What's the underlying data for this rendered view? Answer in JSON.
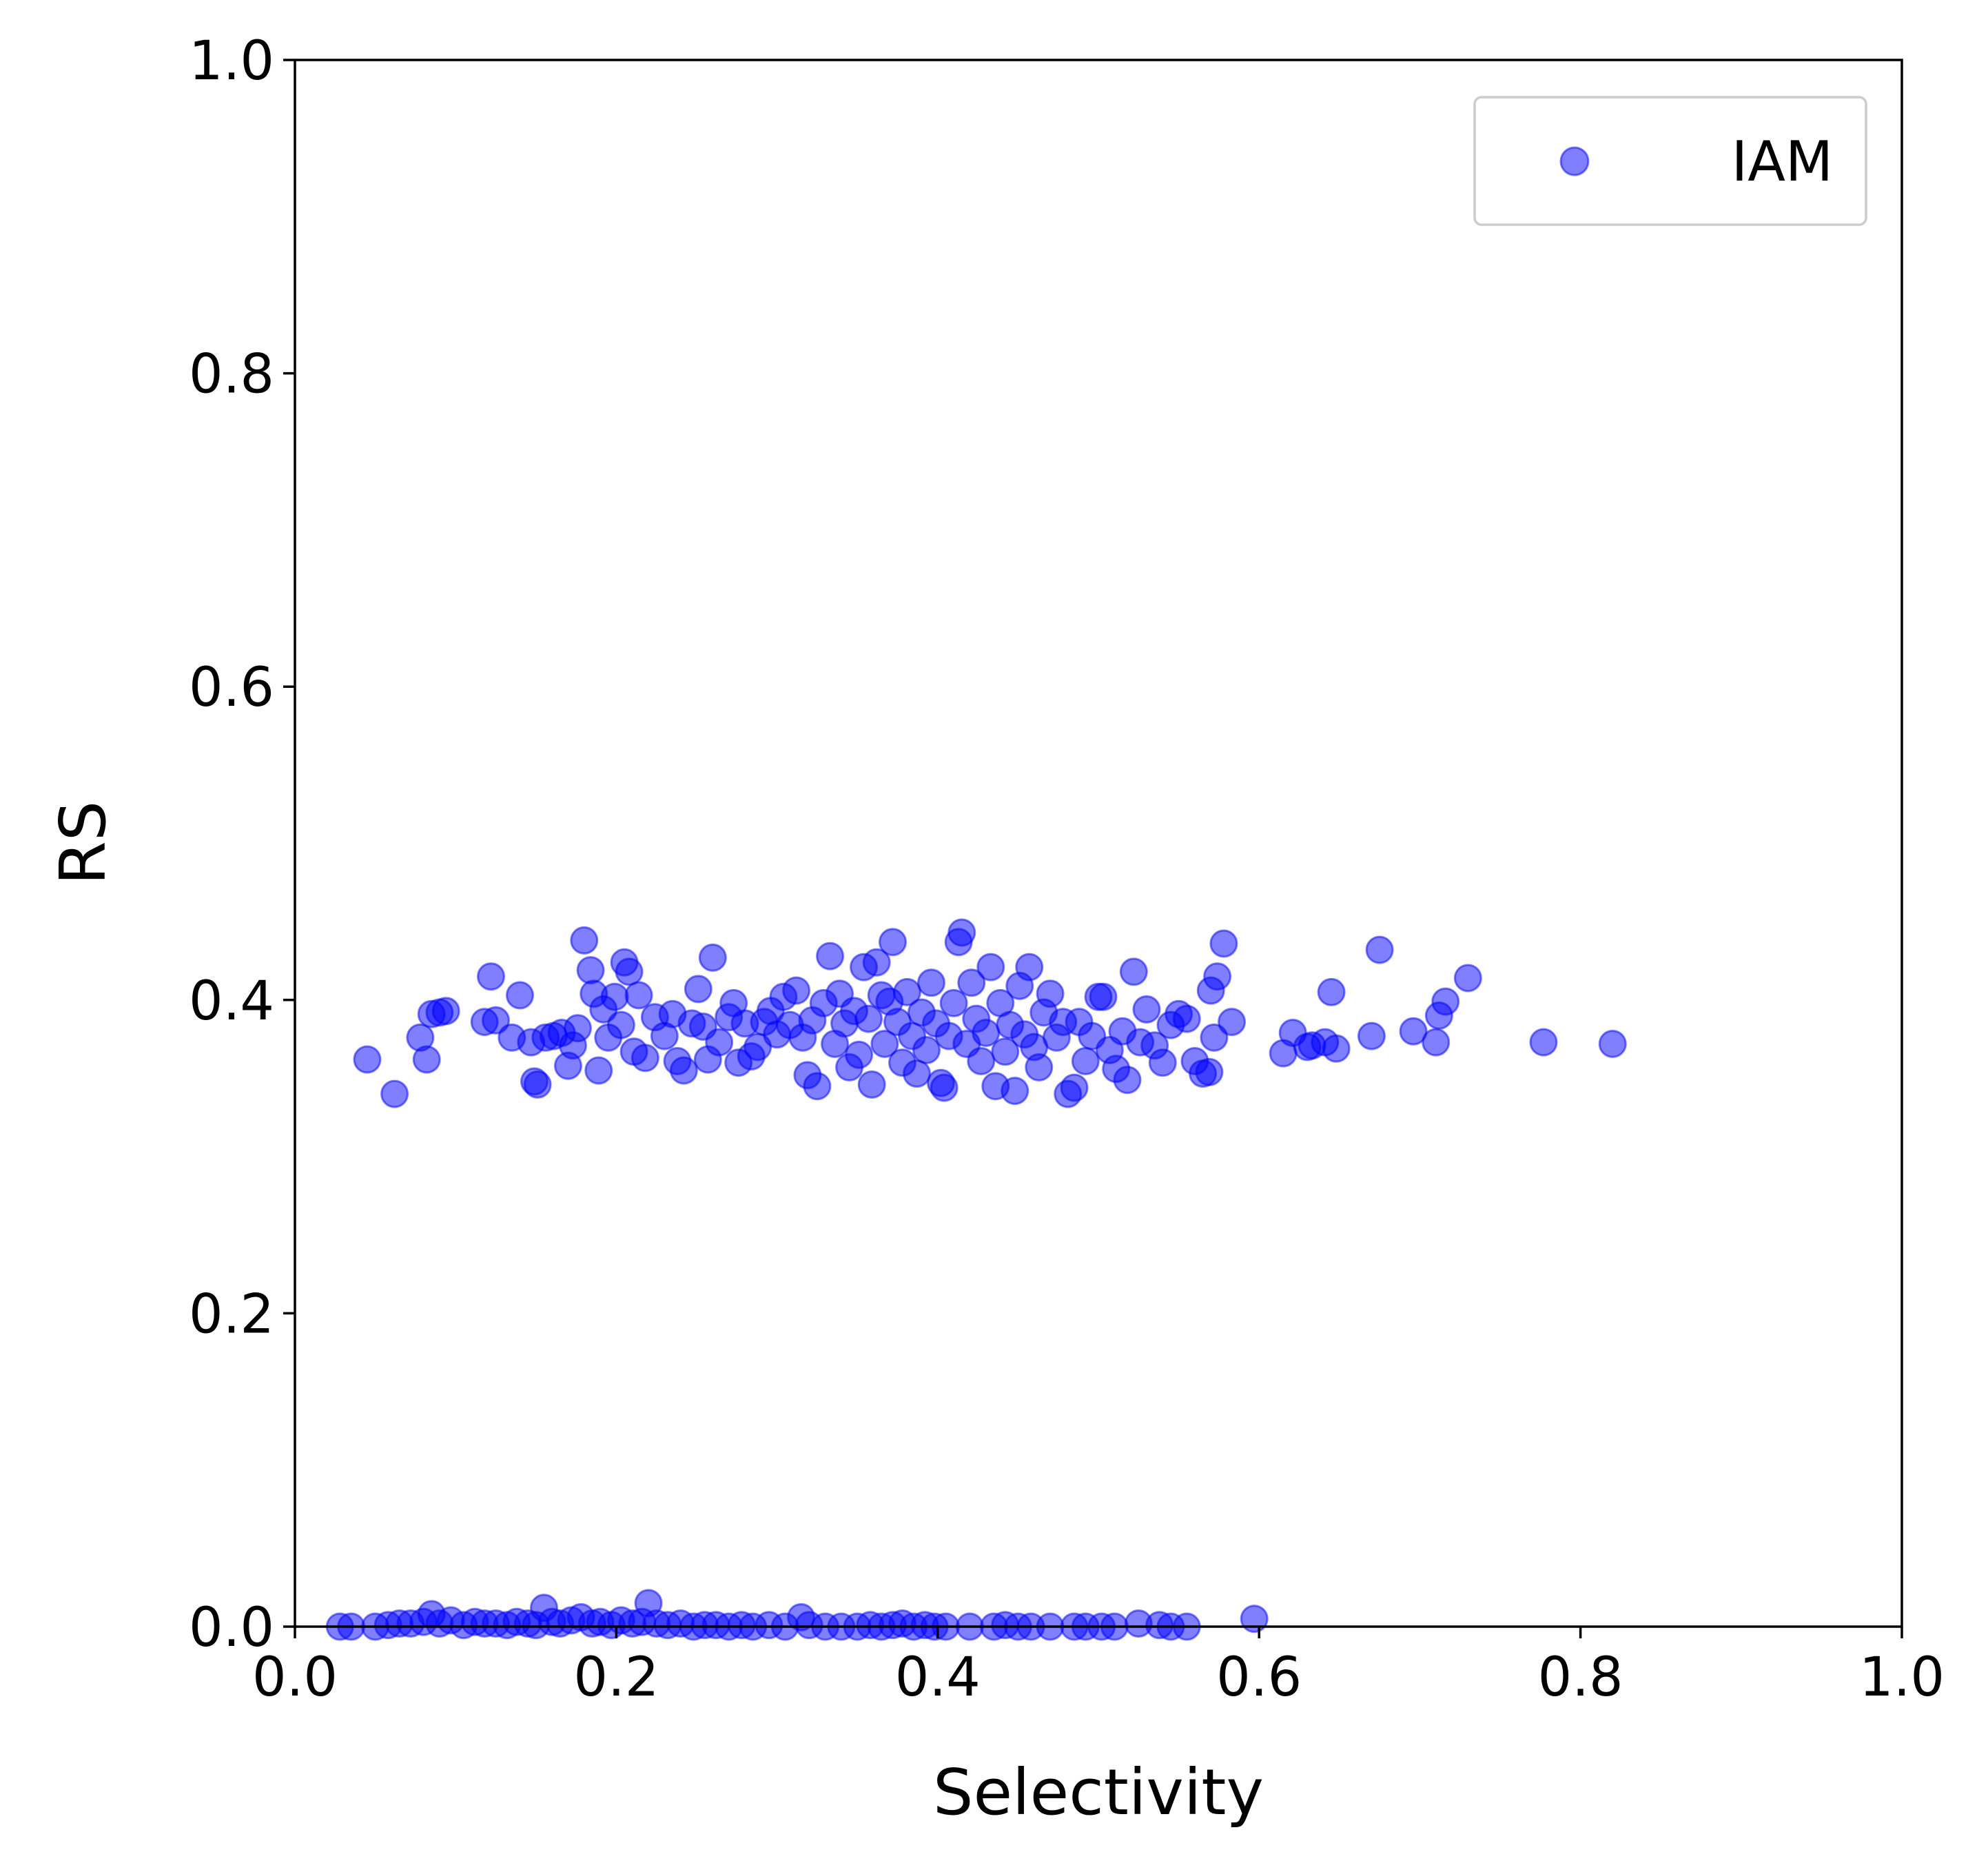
{
  "chart_data": {
    "type": "scatter",
    "title": "",
    "xlabel": "Selectivity",
    "ylabel": "RS",
    "xlim": [
      0.0,
      1.0
    ],
    "ylim": [
      0.0,
      1.0
    ],
    "xticks": [
      "0.0",
      "0.2",
      "0.4",
      "0.6",
      "0.8",
      "1.0"
    ],
    "yticks": [
      "0.0",
      "0.2",
      "0.4",
      "0.6",
      "0.8",
      "1.0"
    ],
    "grid": false,
    "legend_position": "top-right",
    "series": [
      {
        "name": "IAM",
        "color": "#0000ff",
        "alpha": 0.5,
        "points": [
          [
            0.045,
            0.362
          ],
          [
            0.062,
            0.34
          ],
          [
            0.078,
            0.376
          ],
          [
            0.082,
            0.362
          ],
          [
            0.085,
            0.391
          ],
          [
            0.09,
            0.392
          ],
          [
            0.094,
            0.393
          ],
          [
            0.118,
            0.386
          ],
          [
            0.122,
            0.415
          ],
          [
            0.125,
            0.387
          ],
          [
            0.135,
            0.376
          ],
          [
            0.14,
            0.403
          ],
          [
            0.147,
            0.373
          ],
          [
            0.149,
            0.348
          ],
          [
            0.151,
            0.346
          ],
          [
            0.156,
            0.376
          ],
          [
            0.161,
            0.377
          ],
          [
            0.166,
            0.379
          ],
          [
            0.17,
            0.358
          ],
          [
            0.173,
            0.371
          ],
          [
            0.176,
            0.382
          ],
          [
            0.18,
            0.438
          ],
          [
            0.184,
            0.419
          ],
          [
            0.186,
            0.404
          ],
          [
            0.189,
            0.355
          ],
          [
            0.192,
            0.394
          ],
          [
            0.195,
            0.376
          ],
          [
            0.199,
            0.402
          ],
          [
            0.203,
            0.384
          ],
          [
            0.205,
            0.424
          ],
          [
            0.208,
            0.418
          ],
          [
            0.211,
            0.367
          ],
          [
            0.214,
            0.403
          ],
          [
            0.218,
            0.363
          ],
          [
            0.224,
            0.389
          ],
          [
            0.23,
            0.377
          ],
          [
            0.235,
            0.391
          ],
          [
            0.238,
            0.361
          ],
          [
            0.242,
            0.355
          ],
          [
            0.247,
            0.385
          ],
          [
            0.251,
            0.407
          ],
          [
            0.254,
            0.383
          ],
          [
            0.257,
            0.362
          ],
          [
            0.26,
            0.427
          ],
          [
            0.264,
            0.373
          ],
          [
            0.27,
            0.389
          ],
          [
            0.273,
            0.398
          ],
          [
            0.276,
            0.36
          ],
          [
            0.28,
            0.385
          ],
          [
            0.284,
            0.364
          ],
          [
            0.288,
            0.37
          ],
          [
            0.292,
            0.386
          ],
          [
            0.296,
            0.393
          ],
          [
            0.3,
            0.378
          ],
          [
            0.304,
            0.402
          ],
          [
            0.308,
            0.384
          ],
          [
            0.312,
            0.406
          ],
          [
            0.316,
            0.376
          ],
          [
            0.319,
            0.352
          ],
          [
            0.322,
            0.387
          ],
          [
            0.325,
            0.345
          ],
          [
            0.329,
            0.398
          ],
          [
            0.333,
            0.428
          ],
          [
            0.336,
            0.372
          ],
          [
            0.339,
            0.404
          ],
          [
            0.342,
            0.385
          ],
          [
            0.345,
            0.357
          ],
          [
            0.348,
            0.393
          ],
          [
            0.351,
            0.365
          ],
          [
            0.354,
            0.421
          ],
          [
            0.357,
            0.388
          ],
          [
            0.359,
            0.346
          ],
          [
            0.362,
            0.424
          ],
          [
            0.365,
            0.403
          ],
          [
            0.367,
            0.372
          ],
          [
            0.37,
            0.399
          ],
          [
            0.372,
            0.437
          ],
          [
            0.375,
            0.386
          ],
          [
            0.378,
            0.36
          ],
          [
            0.381,
            0.405
          ],
          [
            0.384,
            0.377
          ],
          [
            0.387,
            0.353
          ],
          [
            0.39,
            0.392
          ],
          [
            0.393,
            0.368
          ],
          [
            0.396,
            0.411
          ],
          [
            0.399,
            0.385
          ],
          [
            0.402,
            0.347
          ],
          [
            0.404,
            0.344
          ],
          [
            0.407,
            0.377
          ],
          [
            0.41,
            0.398
          ],
          [
            0.413,
            0.437
          ],
          [
            0.415,
            0.443
          ],
          [
            0.418,
            0.372
          ],
          [
            0.421,
            0.411
          ],
          [
            0.424,
            0.388
          ],
          [
            0.427,
            0.361
          ],
          [
            0.43,
            0.379
          ],
          [
            0.433,
            0.421
          ],
          [
            0.436,
            0.345
          ],
          [
            0.439,
            0.398
          ],
          [
            0.442,
            0.367
          ],
          [
            0.445,
            0.384
          ],
          [
            0.448,
            0.342
          ],
          [
            0.451,
            0.409
          ],
          [
            0.454,
            0.378
          ],
          [
            0.457,
            0.421
          ],
          [
            0.46,
            0.37
          ],
          [
            0.463,
            0.357
          ],
          [
            0.466,
            0.392
          ],
          [
            0.47,
            0.404
          ],
          [
            0.474,
            0.376
          ],
          [
            0.478,
            0.386
          ],
          [
            0.481,
            0.34
          ],
          [
            0.485,
            0.344
          ],
          [
            0.488,
            0.386
          ],
          [
            0.492,
            0.361
          ],
          [
            0.496,
            0.377
          ],
          [
            0.5,
            0.402
          ],
          [
            0.503,
            0.402
          ],
          [
            0.507,
            0.368
          ],
          [
            0.511,
            0.356
          ],
          [
            0.515,
            0.38
          ],
          [
            0.518,
            0.349
          ],
          [
            0.522,
            0.418
          ],
          [
            0.526,
            0.373
          ],
          [
            0.53,
            0.394
          ],
          [
            0.535,
            0.371
          ],
          [
            0.54,
            0.36
          ],
          [
            0.545,
            0.384
          ],
          [
            0.55,
            0.391
          ],
          [
            0.555,
            0.388
          ],
          [
            0.56,
            0.361
          ],
          [
            0.565,
            0.353
          ],
          [
            0.569,
            0.354
          ],
          [
            0.57,
            0.406
          ],
          [
            0.572,
            0.376
          ],
          [
            0.574,
            0.415
          ],
          [
            0.578,
            0.436
          ],
          [
            0.583,
            0.386
          ],
          [
            0.615,
            0.366
          ],
          [
            0.621,
            0.379
          ],
          [
            0.63,
            0.37
          ],
          [
            0.633,
            0.371
          ],
          [
            0.641,
            0.373
          ],
          [
            0.645,
            0.405
          ],
          [
            0.648,
            0.369
          ],
          [
            0.67,
            0.377
          ],
          [
            0.675,
            0.432
          ],
          [
            0.696,
            0.38
          ],
          [
            0.71,
            0.373
          ],
          [
            0.712,
            0.39
          ],
          [
            0.716,
            0.399
          ],
          [
            0.73,
            0.414
          ],
          [
            0.777,
            0.373
          ],
          [
            0.82,
            0.372
          ],
          [
            0.028,
            0.0
          ],
          [
            0.035,
            0.0
          ],
          [
            0.05,
            0.0
          ],
          [
            0.058,
            0.001
          ],
          [
            0.065,
            0.002
          ],
          [
            0.072,
            0.002
          ],
          [
            0.08,
            0.003
          ],
          [
            0.085,
            0.008
          ],
          [
            0.09,
            0.002
          ],
          [
            0.097,
            0.004
          ],
          [
            0.105,
            0.001
          ],
          [
            0.112,
            0.003
          ],
          [
            0.118,
            0.002
          ],
          [
            0.125,
            0.002
          ],
          [
            0.132,
            0.001
          ],
          [
            0.138,
            0.003
          ],
          [
            0.145,
            0.002
          ],
          [
            0.15,
            0.001
          ],
          [
            0.155,
            0.012
          ],
          [
            0.16,
            0.003
          ],
          [
            0.165,
            0.002
          ],
          [
            0.172,
            0.004
          ],
          [
            0.178,
            0.006
          ],
          [
            0.185,
            0.002
          ],
          [
            0.19,
            0.003
          ],
          [
            0.197,
            0.001
          ],
          [
            0.203,
            0.004
          ],
          [
            0.21,
            0.002
          ],
          [
            0.216,
            0.003
          ],
          [
            0.22,
            0.015
          ],
          [
            0.225,
            0.002
          ],
          [
            0.232,
            0.001
          ],
          [
            0.24,
            0.002
          ],
          [
            0.248,
            0.0
          ],
          [
            0.255,
            0.001
          ],
          [
            0.262,
            0.001
          ],
          [
            0.27,
            0.0
          ],
          [
            0.278,
            0.001
          ],
          [
            0.285,
            0.0
          ],
          [
            0.295,
            0.001
          ],
          [
            0.305,
            0.0
          ],
          [
            0.315,
            0.006
          ],
          [
            0.32,
            0.001
          ],
          [
            0.33,
            0.0
          ],
          [
            0.34,
            0.0
          ],
          [
            0.35,
            0.0
          ],
          [
            0.358,
            0.001
          ],
          [
            0.365,
            0.0
          ],
          [
            0.372,
            0.001
          ],
          [
            0.378,
            0.002
          ],
          [
            0.385,
            0.0
          ],
          [
            0.392,
            0.001
          ],
          [
            0.398,
            0.0
          ],
          [
            0.405,
            0.0
          ],
          [
            0.42,
            0.0
          ],
          [
            0.435,
            0.0
          ],
          [
            0.442,
            0.001
          ],
          [
            0.45,
            0.0
          ],
          [
            0.458,
            0.0
          ],
          [
            0.47,
            0.0
          ],
          [
            0.485,
            0.0
          ],
          [
            0.492,
            0.0
          ],
          [
            0.502,
            0.0
          ],
          [
            0.51,
            0.0
          ],
          [
            0.525,
            0.002
          ],
          [
            0.538,
            0.001
          ],
          [
            0.545,
            0.0
          ],
          [
            0.555,
            0.0
          ],
          [
            0.597,
            0.005
          ]
        ]
      }
    ]
  }
}
